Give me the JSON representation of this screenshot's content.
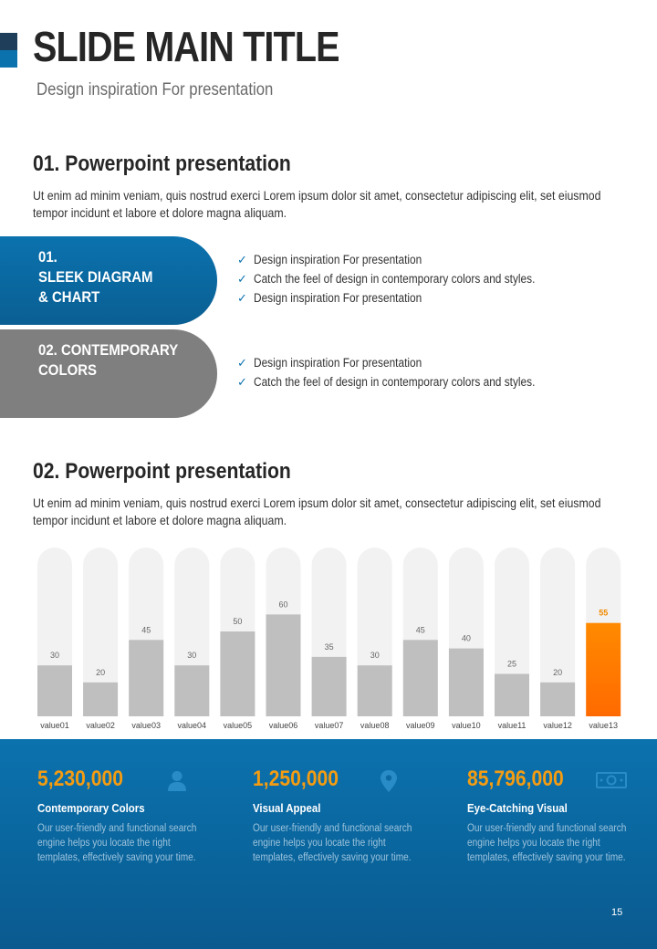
{
  "header": {
    "title": "SLIDE MAIN TITLE",
    "subtitle": "Design inspiration For presentation"
  },
  "section1": {
    "title": "01. Powerpoint presentation",
    "body": "Ut enim ad minim veniam, quis nostrud exerci  Lorem ipsum dolor sit amet, consectetur adipiscing elit, set eiusmod tempor incidunt et labore et dolore magna aliquam.",
    "pills": [
      {
        "lines": [
          "01.",
          "SLEEK DIAGRAM",
          "& CHART"
        ],
        "color": "#0b72ae"
      },
      {
        "lines": [
          "02. CONTEMPORARY",
          "COLORS"
        ],
        "color": "#7f7f7f"
      }
    ],
    "list1": [
      "Design inspiration For presentation",
      "Catch the feel of design in contemporary colors and styles.",
      "Design inspiration For presentation"
    ],
    "list2": [
      "Design inspiration For presentation",
      "Catch the feel of design in contemporary colors and styles."
    ]
  },
  "section2": {
    "title": "02. Powerpoint presentation",
    "body": "Ut enim ad minim veniam, quis nostrud exerci  Lorem ipsum dolor sit amet, consectetur adipiscing elit, set eiusmod tempor incidunt et labore et dolore magna aliquam."
  },
  "chart_data": {
    "type": "bar",
    "title": "",
    "xlabel": "",
    "ylabel": "",
    "ylim": [
      0,
      100
    ],
    "categories": [
      "value01",
      "value02",
      "value03",
      "value04",
      "value05",
      "value06",
      "value07",
      "value08",
      "value09",
      "value10",
      "value11",
      "value12",
      "value13"
    ],
    "values": [
      30,
      20,
      45,
      30,
      50,
      60,
      35,
      30,
      45,
      40,
      25,
      20,
      55
    ],
    "highlight_index": 12,
    "colors": {
      "bar": "#bfbfbf",
      "track": "#f2f2f2",
      "highlight": "#ff8a00",
      "label": "#666666",
      "highlight_label": "#f08a00"
    }
  },
  "stats": [
    {
      "value": "5,230,000",
      "label": "Contemporary Colors",
      "desc": "Our user-friendly and functional search engine helps you locate the right templates, effectively saving your time.",
      "icon": "person-icon"
    },
    {
      "value": "1,250,000",
      "label": "Visual Appeal",
      "desc": "Our user-friendly and functional search engine helps you locate the right templates, effectively saving your time.",
      "icon": "location-pin-icon"
    },
    {
      "value": "85,796,000",
      "label": "Eye-Catching Visual",
      "desc": "Our user-friendly and functional search engine helps you locate the right templates, effectively saving your time.",
      "icon": "money-icon"
    }
  ],
  "page_number": "15",
  "colors": {
    "accent": "#0b72ae",
    "accent_dark": "#1f3e5a",
    "orange": "#f39c12",
    "gray_pill": "#7f7f7f"
  }
}
